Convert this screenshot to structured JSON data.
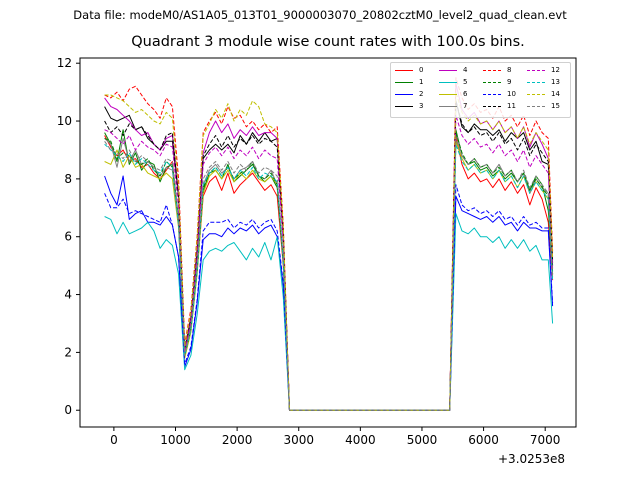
{
  "suptitle": "Data file: modeM0/AS1A05_013T01_9000003070_20802cztM0_level2_quad_clean.evt",
  "chart_data": {
    "type": "line",
    "title": "Quadrant 3 module wise count rates with 100.0s bins.",
    "xlabel": "",
    "ylabel": "",
    "x_offset_label": "+3.0253e8",
    "xlim": [
      -550,
      7500
    ],
    "ylim": [
      -0.58,
      12.18
    ],
    "xticks": [
      0,
      1000,
      2000,
      3000,
      4000,
      5000,
      6000,
      7000
    ],
    "yticks": [
      0,
      2,
      4,
      6,
      8,
      10,
      12
    ],
    "legend_position": "top-right",
    "x": [
      -150,
      -50,
      50,
      150,
      250,
      350,
      450,
      550,
      650,
      750,
      850,
      950,
      1050,
      1150,
      1250,
      1350,
      1450,
      1550,
      1650,
      1750,
      1850,
      1950,
      2050,
      2150,
      2250,
      2350,
      2450,
      2550,
      2650,
      2750,
      2850,
      5450,
      5550,
      5650,
      5750,
      5850,
      5950,
      6050,
      6150,
      6250,
      6350,
      6450,
      6550,
      6650,
      6750,
      6850,
      6950,
      7050,
      7120
    ],
    "series": [
      {
        "name": "0",
        "color": "#ff0000",
        "dash": "solid",
        "values": [
          9.5,
          9.1,
          8.8,
          9.0,
          8.6,
          8.7,
          8.4,
          8.5,
          8.2,
          8.0,
          8.3,
          8.6,
          6.5,
          1.9,
          2.8,
          4.8,
          7.4,
          7.9,
          8.1,
          7.6,
          8.2,
          7.5,
          7.8,
          8.0,
          8.2,
          7.9,
          7.6,
          7.8,
          7.4,
          5.0,
          0.0,
          0.0,
          9.5,
          8.5,
          8.0,
          8.2,
          7.9,
          8.0,
          7.7,
          8.0,
          7.6,
          7.9,
          7.5,
          7.8,
          7.1,
          7.7,
          7.3,
          6.5,
          4.5
        ]
      },
      {
        "name": "1",
        "color": "#008000",
        "dash": "solid",
        "values": [
          9.6,
          9.2,
          8.6,
          9.7,
          8.5,
          8.9,
          8.3,
          8.6,
          8.5,
          7.9,
          8.4,
          8.5,
          6.6,
          2.0,
          3.0,
          5.0,
          7.6,
          8.2,
          8.3,
          8.0,
          8.5,
          7.9,
          8.1,
          8.3,
          8.5,
          8.1,
          7.9,
          8.1,
          7.7,
          5.2,
          0.0,
          0.0,
          9.7,
          8.8,
          8.5,
          8.6,
          8.3,
          8.4,
          8.1,
          8.3,
          8.0,
          8.2,
          7.9,
          8.2,
          7.6,
          8.1,
          7.8,
          6.9,
          4.7
        ]
      },
      {
        "name": "2",
        "color": "#0000ff",
        "dash": "solid",
        "values": [
          8.1,
          7.5,
          7.1,
          8.1,
          6.6,
          6.8,
          6.9,
          6.5,
          6.5,
          6.4,
          6.7,
          6.4,
          5.3,
          1.5,
          2.1,
          3.7,
          5.9,
          6.1,
          6.1,
          6.0,
          6.3,
          6.1,
          6.3,
          6.2,
          6.4,
          6.1,
          6.3,
          6.4,
          6.0,
          4.3,
          0.0,
          0.0,
          7.4,
          6.9,
          6.8,
          6.7,
          6.6,
          6.7,
          6.5,
          6.7,
          6.4,
          6.5,
          6.2,
          6.5,
          6.3,
          6.3,
          6.2,
          6.2,
          3.6
        ]
      },
      {
        "name": "3",
        "color": "#000000",
        "dash": "solid",
        "values": [
          10.5,
          10.1,
          10.0,
          10.1,
          10.2,
          9.7,
          9.8,
          9.4,
          9.2,
          9.0,
          9.3,
          9.3,
          7.4,
          2.1,
          3.2,
          5.4,
          8.7,
          9.0,
          9.2,
          9.0,
          9.2,
          8.9,
          9.5,
          9.2,
          9.6,
          9.3,
          9.6,
          9.3,
          9.4,
          6.0,
          0.0,
          0.0,
          10.7,
          9.8,
          9.6,
          9.9,
          9.7,
          9.7,
          9.5,
          9.7,
          9.3,
          9.6,
          9.4,
          9.6,
          9.0,
          9.3,
          8.6,
          8.5,
          5.0
        ]
      },
      {
        "name": "4",
        "color": "#bf00bf",
        "dash": "solid",
        "values": [
          10.8,
          10.5,
          10.4,
          10.2,
          10.0,
          9.7,
          9.5,
          9.6,
          9.2,
          9.0,
          9.4,
          9.5,
          7.5,
          2.0,
          3.2,
          5.6,
          8.9,
          9.6,
          10.0,
          9.6,
          9.9,
          9.4,
          9.7,
          9.5,
          9.8,
          9.5,
          9.6,
          9.6,
          9.4,
          6.1,
          0.0,
          0.0,
          11.3,
          10.4,
          10.1,
          10.3,
          9.9,
          10.0,
          9.7,
          10.0,
          9.6,
          9.8,
          9.4,
          9.8,
          9.1,
          9.6,
          9.2,
          8.7,
          5.2
        ]
      },
      {
        "name": "5",
        "color": "#00bfbf",
        "dash": "solid",
        "values": [
          6.7,
          6.6,
          6.1,
          6.5,
          6.1,
          6.2,
          6.3,
          6.5,
          6.2,
          5.6,
          5.9,
          5.7,
          4.7,
          1.4,
          1.9,
          3.3,
          5.2,
          5.5,
          5.6,
          5.5,
          5.7,
          5.8,
          5.5,
          5.2,
          5.6,
          5.3,
          5.8,
          5.2,
          6.0,
          3.9,
          0.0,
          0.0,
          6.8,
          6.2,
          6.1,
          6.3,
          6.0,
          6.0,
          5.8,
          6.0,
          5.6,
          5.9,
          5.6,
          5.9,
          5.5,
          5.7,
          5.2,
          5.2,
          3.0
        ]
      },
      {
        "name": "6",
        "color": "#bfbf00",
        "dash": "solid",
        "values": [
          8.6,
          8.5,
          9.0,
          8.4,
          8.8,
          8.4,
          8.5,
          8.2,
          8.1,
          8.0,
          8.2,
          8.0,
          6.3,
          1.8,
          2.7,
          4.7,
          7.5,
          8.1,
          8.3,
          8.0,
          8.3,
          7.9,
          8.2,
          8.0,
          8.3,
          8.0,
          7.9,
          8.1,
          7.8,
          5.1,
          0.0,
          0.0,
          9.3,
          8.7,
          8.3,
          8.5,
          8.2,
          8.3,
          8.0,
          8.3,
          7.9,
          8.1,
          7.7,
          8.1,
          7.5,
          7.9,
          7.6,
          7.3,
          4.6
        ]
      },
      {
        "name": "7",
        "color": "#808080",
        "dash": "solid",
        "values": [
          9.4,
          9.2,
          8.4,
          9.4,
          8.6,
          9.0,
          8.5,
          8.6,
          8.4,
          8.1,
          8.4,
          8.3,
          6.4,
          1.9,
          2.8,
          4.9,
          7.8,
          8.3,
          8.5,
          8.2,
          8.4,
          8.0,
          8.3,
          8.4,
          8.6,
          8.1,
          8.0,
          8.3,
          7.8,
          5.1,
          0.0,
          0.0,
          9.6,
          8.8,
          8.5,
          8.7,
          8.4,
          8.5,
          8.2,
          8.5,
          8.1,
          8.3,
          7.9,
          8.2,
          7.5,
          8.0,
          7.7,
          7.5,
          4.8
        ]
      },
      {
        "name": "8",
        "color": "#ff0000",
        "dash": "dashed",
        "values": [
          10.9,
          10.8,
          11.0,
          10.7,
          11.1,
          11.2,
          10.9,
          10.6,
          10.4,
          10.1,
          10.8,
          10.5,
          8.0,
          2.3,
          3.5,
          6.0,
          9.6,
          10.0,
          10.3,
          9.9,
          10.5,
          10.1,
          10.2,
          9.8,
          10.0,
          9.7,
          9.9,
          9.6,
          9.8,
          6.4,
          0.0,
          0.0,
          11.5,
          10.8,
          10.4,
          10.6,
          10.3,
          10.4,
          10.1,
          10.5,
          10.0,
          10.2,
          9.8,
          10.2,
          9.5,
          10.0,
          9.6,
          9.4,
          5.5
        ]
      },
      {
        "name": "9",
        "color": "#008000",
        "dash": "dashed",
        "values": [
          9.4,
          9.3,
          8.7,
          8.9,
          8.8,
          8.6,
          8.5,
          8.7,
          8.3,
          8.1,
          8.6,
          8.4,
          6.5,
          1.9,
          2.8,
          4.8,
          7.7,
          8.2,
          8.4,
          8.1,
          8.4,
          8.0,
          8.2,
          8.3,
          8.6,
          8.1,
          8.0,
          8.2,
          7.8,
          5.1,
          0.0,
          0.0,
          9.6,
          8.9,
          8.5,
          8.7,
          8.4,
          8.5,
          8.2,
          8.4,
          8.1,
          8.3,
          7.9,
          8.2,
          7.6,
          8.0,
          7.7,
          7.4,
          4.7
        ]
      },
      {
        "name": "10",
        "color": "#0000ff",
        "dash": "dashed",
        "values": [
          7.5,
          7.0,
          7.0,
          7.3,
          6.8,
          6.9,
          6.8,
          6.7,
          6.6,
          6.5,
          7.1,
          6.4,
          5.3,
          1.6,
          2.2,
          3.8,
          6.2,
          6.5,
          6.5,
          6.5,
          6.6,
          6.3,
          6.5,
          6.4,
          6.6,
          6.3,
          6.5,
          6.6,
          6.2,
          4.4,
          0.0,
          0.0,
          7.8,
          7.1,
          6.9,
          7.0,
          6.8,
          6.9,
          6.7,
          6.9,
          6.6,
          6.7,
          6.4,
          6.7,
          6.4,
          6.5,
          6.3,
          6.3,
          3.7
        ]
      },
      {
        "name": "11",
        "color": "#000000",
        "dash": "dashed",
        "values": [
          10.0,
          9.6,
          9.8,
          9.5,
          9.9,
          9.7,
          9.8,
          9.5,
          9.2,
          9.0,
          9.5,
          9.6,
          7.3,
          2.1,
          3.2,
          5.5,
          8.8,
          9.2,
          9.5,
          9.1,
          9.5,
          9.1,
          9.4,
          9.2,
          9.5,
          9.2,
          9.4,
          9.3,
          9.1,
          6.0,
          0.0,
          0.0,
          10.7,
          9.9,
          9.6,
          9.8,
          9.5,
          9.6,
          9.3,
          9.6,
          9.2,
          9.4,
          9.0,
          9.4,
          8.8,
          9.2,
          8.9,
          8.6,
          5.1
        ]
      },
      {
        "name": "12",
        "color": "#bf00bf",
        "dash": "dashed",
        "values": [
          9.7,
          9.6,
          9.4,
          9.2,
          9.5,
          9.0,
          9.3,
          9.1,
          9.0,
          8.8,
          9.2,
          9.1,
          7.0,
          2.0,
          3.1,
          5.3,
          8.5,
          8.9,
          9.1,
          8.8,
          9.1,
          8.7,
          9.0,
          8.8,
          9.1,
          8.7,
          9.0,
          8.8,
          8.7,
          5.8,
          0.0,
          0.0,
          10.2,
          9.5,
          9.2,
          9.4,
          9.1,
          9.2,
          8.9,
          9.2,
          8.8,
          9.0,
          8.6,
          9.0,
          8.4,
          8.8,
          8.5,
          8.2,
          4.9
        ]
      },
      {
        "name": "13",
        "color": "#00bfbf",
        "dash": "dashed",
        "values": [
          9.2,
          9.0,
          8.8,
          8.6,
          8.9,
          8.5,
          8.7,
          8.5,
          8.3,
          8.2,
          8.6,
          8.4,
          6.4,
          1.9,
          2.8,
          4.8,
          7.8,
          8.2,
          8.4,
          8.1,
          8.4,
          8.0,
          8.3,
          8.1,
          8.4,
          8.0,
          8.2,
          8.1,
          7.9,
          5.2,
          0.0,
          0.0,
          9.2,
          8.6,
          8.3,
          8.5,
          8.2,
          8.3,
          8.0,
          8.3,
          7.9,
          8.1,
          7.7,
          8.1,
          7.5,
          7.9,
          7.6,
          7.3,
          4.5
        ]
      },
      {
        "name": "14",
        "color": "#bfbf00",
        "dash": "dashed",
        "values": [
          10.9,
          10.9,
          10.8,
          10.7,
          10.5,
          10.3,
          10.4,
          10.2,
          10.0,
          9.9,
          10.3,
          10.1,
          7.7,
          2.2,
          3.4,
          5.9,
          9.5,
          9.9,
          10.4,
          10.1,
          10.6,
          10.0,
          10.4,
          10.2,
          10.7,
          10.5,
          9.9,
          9.8,
          9.6,
          6.3,
          0.0,
          0.0,
          11.0,
          10.3,
          10.0,
          10.2,
          9.9,
          10.0,
          9.7,
          10.0,
          9.6,
          9.8,
          9.4,
          9.8,
          9.2,
          9.6,
          9.3,
          9.0,
          5.3
        ]
      },
      {
        "name": "15",
        "color": "#808080",
        "dash": "dashed",
        "values": [
          9.3,
          9.0,
          8.9,
          8.7,
          9.0,
          8.6,
          8.8,
          8.6,
          8.4,
          8.3,
          8.7,
          8.6,
          6.6,
          1.9,
          2.9,
          5.0,
          8.0,
          8.4,
          8.6,
          8.3,
          8.6,
          8.2,
          8.5,
          8.3,
          8.6,
          8.2,
          8.4,
          8.3,
          8.1,
          5.4,
          0.0,
          0.0,
          9.4,
          8.8,
          8.5,
          8.7,
          8.4,
          8.5,
          8.2,
          8.5,
          8.1,
          8.3,
          7.9,
          8.3,
          7.7,
          8.1,
          7.8,
          7.5,
          4.6
        ]
      }
    ]
  }
}
